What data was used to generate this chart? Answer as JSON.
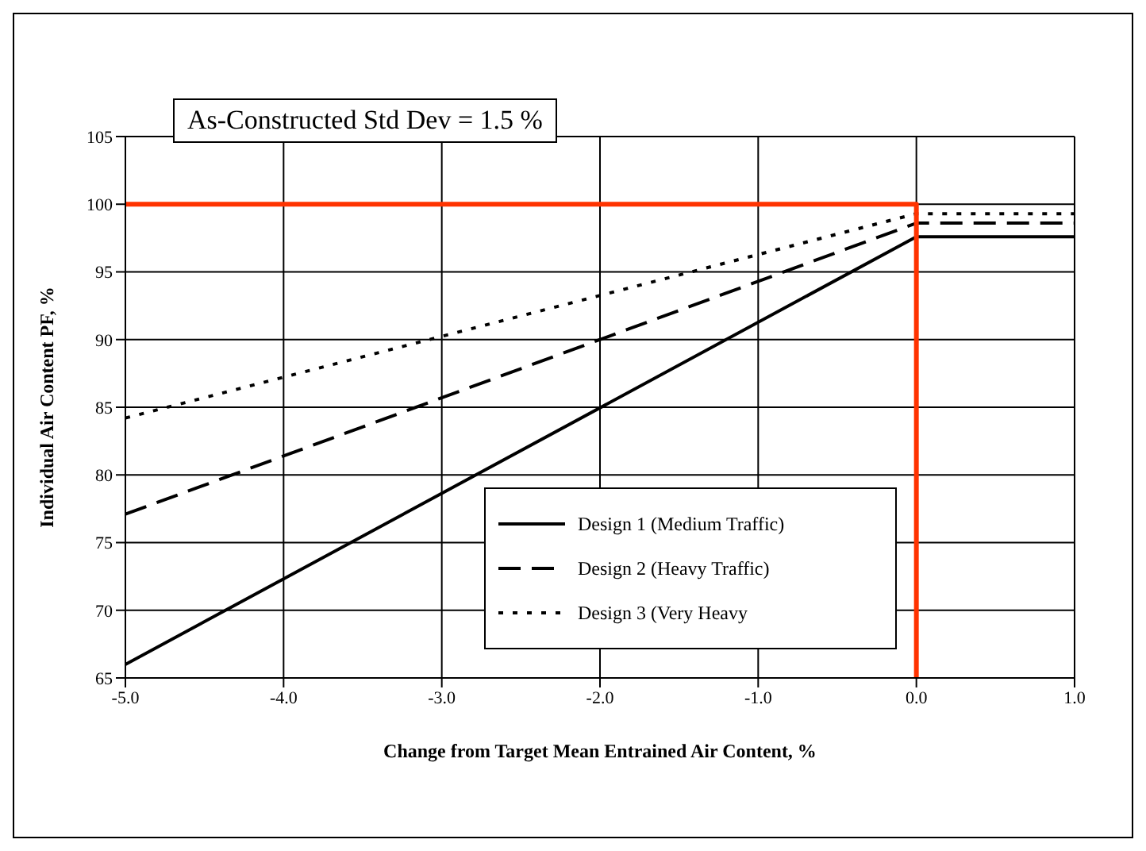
{
  "chart_data": {
    "type": "line",
    "xlabel": "Change from Target Mean Entrained Air Content, %",
    "ylabel": "Individual Air Content PF, %",
    "annotations": [
      "As-Constructed Std Dev = 1.5 %"
    ],
    "xlim": [
      -5,
      1
    ],
    "xticks": [
      {
        "value": -5,
        "label": "-5.0"
      },
      {
        "value": -4,
        "label": "-4.0"
      },
      {
        "value": -3,
        "label": "-3.0"
      },
      {
        "value": -2,
        "label": "-2.0"
      },
      {
        "value": -1,
        "label": "-1.0"
      },
      {
        "value": 0,
        "label": "0.0"
      },
      {
        "value": 1,
        "label": "1.0"
      }
    ],
    "ylim": [
      65,
      105
    ],
    "yticks": [
      65,
      70,
      75,
      80,
      85,
      90,
      95,
      100,
      105
    ],
    "grid": true,
    "legend": "bottom right",
    "marker": "none",
    "series": [
      {
        "name": "Design 1 (Medium Traffic)",
        "color": "#000000",
        "line_style": "solid",
        "x": [
          -5,
          0,
          1
        ],
        "values": [
          66,
          97.6,
          97.6
        ]
      },
      {
        "name": "Design 2 (Heavy Traffic)",
        "color": "#000000",
        "line_style": "dashed",
        "x": [
          -5,
          0,
          1
        ],
        "values": [
          77.1,
          98.6,
          98.6
        ]
      },
      {
        "name": "Design 3 (Very Heavy",
        "color": "#000000",
        "line_style": "dotted",
        "x": [
          -5,
          0,
          1
        ],
        "values": [
          84.2,
          99.3,
          99.3
        ]
      },
      {
        "color": "#ff3300",
        "line_style": "solid",
        "x": [
          -5,
          0,
          0
        ],
        "values": [
          100,
          100,
          65
        ]
      }
    ]
  }
}
